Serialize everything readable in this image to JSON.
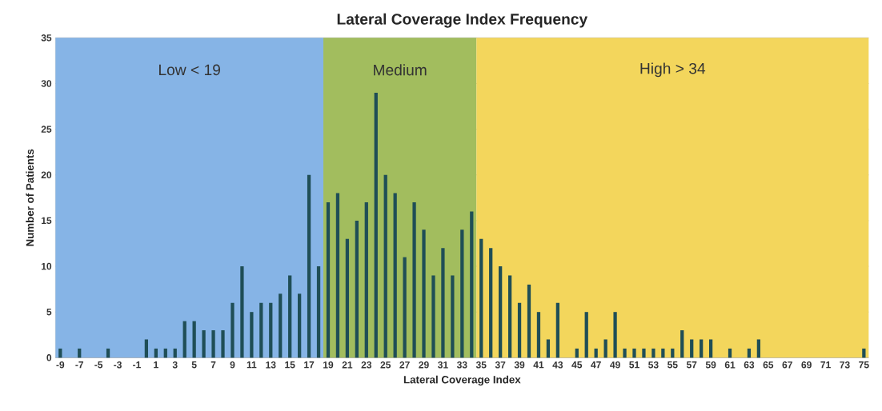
{
  "chart_data": {
    "type": "bar",
    "title": "Lateral Coverage Index Frequency",
    "xlabel": "Lateral Coverage Index",
    "ylabel": "Number of Patients",
    "x": [
      -9,
      -8,
      -7,
      -6,
      -5,
      -4,
      -3,
      -2,
      -1,
      0,
      1,
      2,
      3,
      4,
      5,
      6,
      7,
      8,
      9,
      10,
      11,
      12,
      13,
      14,
      15,
      16,
      17,
      18,
      19,
      20,
      21,
      22,
      23,
      24,
      25,
      26,
      27,
      28,
      29,
      30,
      31,
      32,
      33,
      34,
      35,
      36,
      37,
      38,
      39,
      40,
      41,
      42,
      43,
      44,
      45,
      46,
      47,
      48,
      49,
      50,
      51,
      52,
      53,
      54,
      55,
      56,
      57,
      58,
      59,
      60,
      61,
      62,
      63,
      64,
      65,
      66,
      67,
      68,
      69,
      70,
      71,
      72,
      73,
      74,
      75
    ],
    "values": [
      1,
      0,
      1,
      0,
      0,
      1,
      0,
      0,
      0,
      2,
      1,
      1,
      1,
      4,
      4,
      3,
      3,
      3,
      6,
      10,
      5,
      6,
      6,
      7,
      9,
      7,
      20,
      10,
      17,
      18,
      13,
      15,
      17,
      29,
      20,
      18,
      11,
      17,
      14,
      9,
      12,
      9,
      14,
      16,
      13,
      12,
      10,
      9,
      6,
      8,
      5,
      2,
      6,
      0,
      1,
      5,
      1,
      2,
      5,
      1,
      1,
      1,
      1,
      1,
      1,
      3,
      2,
      2,
      2,
      0,
      1,
      0,
      1,
      2,
      0,
      0,
      0,
      0,
      0,
      0,
      0,
      0,
      0,
      0,
      1
    ],
    "color": "#1f4e56",
    "xlim": [
      -9.5,
      75.5
    ],
    "xticks": [
      -9,
      -7,
      -5,
      -3,
      -1,
      1,
      3,
      5,
      7,
      9,
      11,
      13,
      15,
      17,
      19,
      21,
      23,
      25,
      27,
      29,
      31,
      33,
      35,
      37,
      39,
      41,
      43,
      45,
      47,
      49,
      51,
      53,
      55,
      57,
      59,
      61,
      63,
      65,
      67,
      69,
      71,
      73,
      75
    ],
    "ylim": [
      0,
      35
    ],
    "yticks": [
      0,
      5,
      10,
      15,
      20,
      25,
      30,
      35
    ],
    "grid": "y",
    "bands": [
      {
        "axis": "x",
        "from": -9.5,
        "to": 18.5,
        "label": "Low < 19",
        "color": "#86b4e6"
      },
      {
        "axis": "x",
        "from": 18.5,
        "to": 34.5,
        "label": "Medium",
        "color": "#a2bd5e"
      },
      {
        "axis": "x",
        "from": 34.5,
        "to": 75.5,
        "label": "High > 34",
        "color": "#f3d65c"
      }
    ]
  }
}
